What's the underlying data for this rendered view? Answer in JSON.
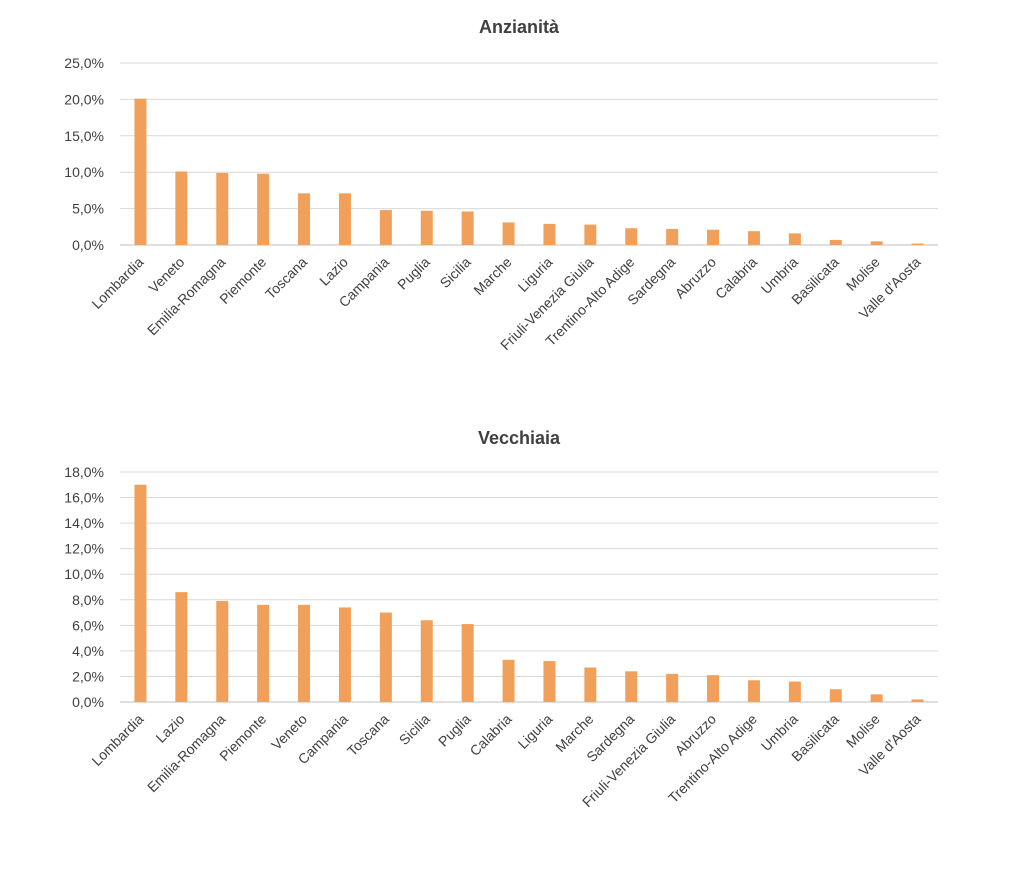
{
  "chart_data": [
    {
      "type": "bar",
      "title": "Anzianità",
      "categories": [
        "Lombardia",
        "Veneto",
        "Emilia-Romagna",
        "Piemonte",
        "Toscana",
        "Lazio",
        "Campania",
        "Puglia",
        "Sicilia",
        "Marche",
        "Liguria",
        "Friuli-Venezia Giulia",
        "Trentino-Alto Adige",
        "Sardegna",
        "Abruzzo",
        "Calabria",
        "Umbria",
        "Basilicata",
        "Molise",
        "Valle d'Aosta"
      ],
      "values": [
        20.1,
        10.1,
        9.9,
        9.8,
        7.1,
        7.1,
        4.8,
        4.7,
        4.6,
        3.1,
        2.9,
        2.8,
        2.3,
        2.2,
        2.1,
        1.9,
        1.6,
        0.7,
        0.5,
        0.2
      ],
      "ylim": [
        0,
        25
      ],
      "yticks": [
        "0,0%",
        "5,0%",
        "10,0%",
        "15,0%",
        "20,0%",
        "25,0%"
      ],
      "color": "#f0a05a",
      "grid": true
    },
    {
      "type": "bar",
      "title": "Vecchiaia",
      "categories": [
        "Lombardia",
        "Lazio",
        "Emilia-Romagna",
        "Piemonte",
        "Veneto",
        "Campania",
        "Toscana",
        "Sicilia",
        "Puglia",
        "Calabria",
        "Liguria",
        "Marche",
        "Sardegna",
        "Friuli-Venezia Giulia",
        "Abruzzo",
        "Trentino-Alto Adige",
        "Umbria",
        "Basilicata",
        "Molise",
        "Valle d'Aosta"
      ],
      "values": [
        17.0,
        8.6,
        7.9,
        7.6,
        7.6,
        7.4,
        7.0,
        6.4,
        6.1,
        3.3,
        3.2,
        2.7,
        2.4,
        2.2,
        2.1,
        1.7,
        1.6,
        1.0,
        0.6,
        0.2
      ],
      "ylim": [
        0,
        18
      ],
      "yticks": [
        "0,0%",
        "2,0%",
        "4,0%",
        "6,0%",
        "8,0%",
        "10,0%",
        "12,0%",
        "14,0%",
        "16,0%",
        "18,0%"
      ],
      "color": "#f0a05a",
      "grid": true
    }
  ]
}
